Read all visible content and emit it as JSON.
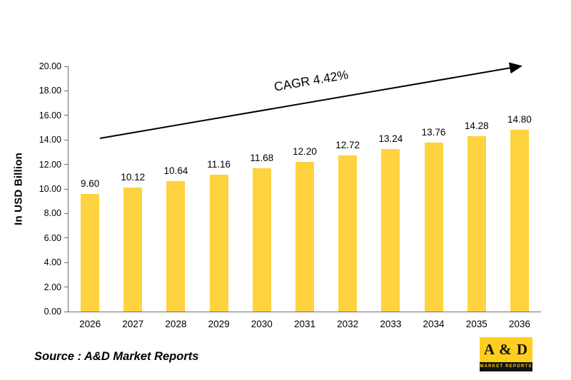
{
  "chart_data": {
    "type": "bar",
    "title": "",
    "categories": [
      "2026",
      "2027",
      "2028",
      "2029",
      "2030",
      "2031",
      "2032",
      "2033",
      "2034",
      "2035",
      "2036"
    ],
    "values": [
      9.6,
      10.12,
      10.64,
      11.16,
      11.68,
      12.2,
      12.72,
      13.24,
      13.76,
      14.28,
      14.8
    ],
    "value_labels": [
      "9.60",
      "10.12",
      "10.64",
      "11.16",
      "11.68",
      "12.20",
      "12.72",
      "13.24",
      "13.76",
      "14.28",
      "14.80"
    ],
    "xlabel": "",
    "ylabel": "In USD Billion",
    "ylim": [
      0,
      20
    ],
    "ytick_step": 2,
    "yticks": [
      "0.00",
      "2.00",
      "4.00",
      "6.00",
      "8.00",
      "10.00",
      "12.00",
      "14.00",
      "16.00",
      "18.00",
      "20.00"
    ],
    "annotation": "CAGR 4.42%",
    "legend": null,
    "grid": false,
    "colors": {
      "bar": "#FFD23F",
      "axis": "#6f6f6f",
      "arrow": "#000000"
    }
  },
  "footer": {
    "source": "Source : A&D Market Reports"
  },
  "logo": {
    "top": "A & D",
    "bottom": "MARKET REPORTS",
    "yellow": "#FFCE1F",
    "black": "#111111"
  }
}
